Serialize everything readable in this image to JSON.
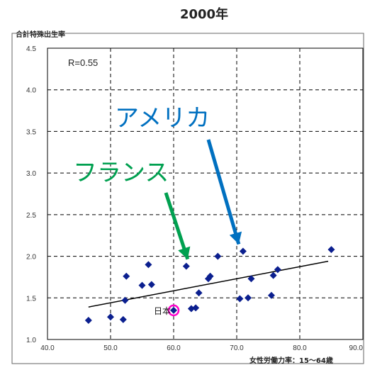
{
  "chart_data": {
    "type": "scatter",
    "title": "2000年",
    "ylabel": "合計特殊出生率",
    "xlabel": "女性労働力率：15〜64歳",
    "xlim": [
      40,
      90
    ],
    "ylim": [
      1.0,
      4.5
    ],
    "x_ticks": [
      "40.0",
      "50.0",
      "60.0",
      "70.0",
      "80.0",
      "90.0"
    ],
    "y_ticks": [
      "1.0",
      "1.5",
      "2.0",
      "2.5",
      "3.0",
      "3.5",
      "4.0",
      "4.5"
    ],
    "grid": true,
    "correlation_label": "R=0.55",
    "points": [
      {
        "x": 46.5,
        "y": 1.23
      },
      {
        "x": 50.0,
        "y": 1.27
      },
      {
        "x": 52.0,
        "y": 1.24
      },
      {
        "x": 52.3,
        "y": 1.47
      },
      {
        "x": 52.5,
        "y": 1.76
      },
      {
        "x": 55.0,
        "y": 1.65
      },
      {
        "x": 56.0,
        "y": 1.9
      },
      {
        "x": 56.5,
        "y": 1.66
      },
      {
        "x": 60.0,
        "y": 1.35
      },
      {
        "x": 62.0,
        "y": 1.88
      },
      {
        "x": 62.8,
        "y": 1.37
      },
      {
        "x": 63.5,
        "y": 1.38
      },
      {
        "x": 64.0,
        "y": 1.56
      },
      {
        "x": 65.5,
        "y": 1.73
      },
      {
        "x": 65.8,
        "y": 1.76
      },
      {
        "x": 67.0,
        "y": 2.0
      },
      {
        "x": 70.5,
        "y": 1.49
      },
      {
        "x": 71.0,
        "y": 2.06
      },
      {
        "x": 71.8,
        "y": 1.5
      },
      {
        "x": 72.3,
        "y": 1.73
      },
      {
        "x": 75.5,
        "y": 1.53
      },
      {
        "x": 75.8,
        "y": 1.77
      },
      {
        "x": 76.5,
        "y": 1.84
      },
      {
        "x": 85.0,
        "y": 2.08
      }
    ],
    "trendline": {
      "x": [
        46.5,
        84.5
      ],
      "y": [
        1.39,
        1.94
      ]
    },
    "highlight": {
      "label": "日本",
      "x": 60.0,
      "y": 1.35,
      "color": "#FF00CC"
    },
    "annotations": [
      {
        "text": "アメリカ",
        "color": "#0070C0",
        "point": {
          "x": 71.0,
          "y": 2.06
        }
      },
      {
        "text": "フランス",
        "color": "#00A050",
        "point": {
          "x": 62.0,
          "y": 1.88
        }
      }
    ],
    "colors": {
      "marker": "#0B1F8F",
      "trend": "#000000"
    }
  }
}
